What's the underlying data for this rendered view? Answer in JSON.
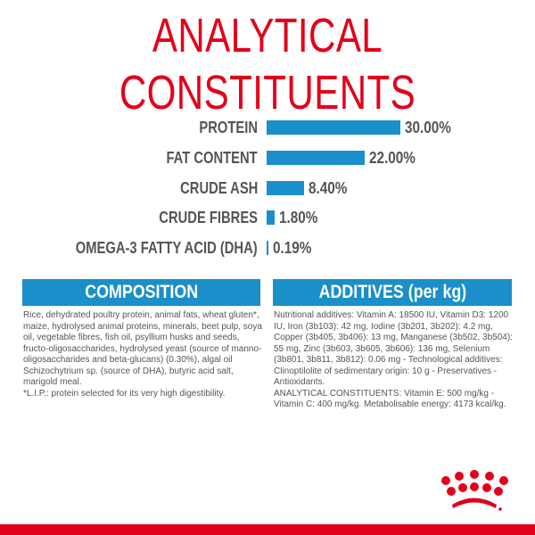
{
  "title": "ANALYTICAL CONSTITUENTS",
  "chart_data": {
    "type": "bar",
    "orientation": "horizontal",
    "categories": [
      "PROTEIN",
      "FAT CONTENT",
      "CRUDE ASH",
      "CRUDE FIBRES",
      "OMEGA-3 FATTY ACID (DHA)"
    ],
    "values": [
      30.0,
      22.0,
      8.4,
      1.8,
      0.19
    ],
    "value_labels": [
      "30.00%",
      "22.00%",
      "8.40%",
      "1.80%",
      "0.19%"
    ],
    "unit": "%",
    "bar_color": "#1a8fc9",
    "grid": false
  },
  "composition": {
    "heading": "COMPOSITION",
    "text": "Rice, dehydrated poultry protein, animal fats, wheat gluten*, maize, hydrolysed animal proteins, minerals, beet pulp, soya oil, vegetable fibres, fish oil, psyllium husks and seeds, fructo-oligosaccharides, hydrolysed yeast (source of manno-oligosaccharides and beta-glucans) (0.30%), algal oil Schizochytrium sp. (source of DHA), butyric acid salt, marigold meal.",
    "note": "*L.I.P.: protein selected for its very high digestibility."
  },
  "additives": {
    "heading": "ADDITIVES (per kg)",
    "text": "Nutritional additives: Vitamin A: 18500 IU, Vitamin D3: 1200 IU, Iron (3b103): 42 mg, Iodine (3b201, 3b202): 4.2 mg, Copper (3b405, 3b406): 13 mg, Manganese (3b502, 3b504): 55 mg, Zinc (3b603, 3b605, 3b606): 136 mg, Selenium (3b801, 3b811, 3b812): 0.06 mg - Technological additives: Clinoptilolite of sedimentary origin: 10 g - Preservatives - Antioxidants.",
    "constituents": "ANALYTICAL CONSTITUENTS: Vitamin E: 500 mg/kg - Vitamin C: 400 mg/kg. Metabolisable energy: 4173 kcal/kg."
  },
  "colors": {
    "brand_red": "#e2001a",
    "accent_blue": "#1a8fc9",
    "text_grey": "#555555"
  },
  "logo": "royal-canin-crown"
}
